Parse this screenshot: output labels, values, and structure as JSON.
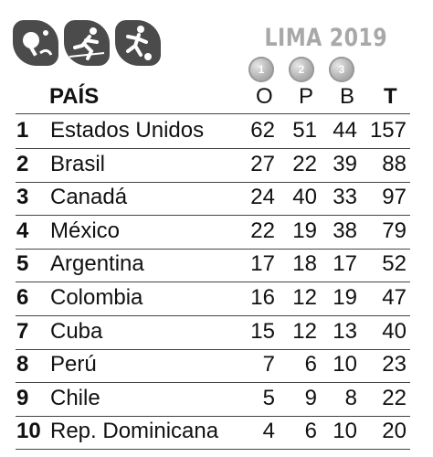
{
  "header": {
    "event_title": "LIMA 2019",
    "medals": [
      "1",
      "2",
      "3"
    ],
    "pictograms": [
      "table-tennis-icon",
      "athletics-icon",
      "football-icon"
    ]
  },
  "table": {
    "columns": {
      "pais": "PAÍS",
      "oro": "O",
      "plata": "P",
      "bronce": "B",
      "total": "T"
    },
    "rows": [
      {
        "rank": "1",
        "country": "Estados Unidos",
        "o": "62",
        "p": "51",
        "b": "44",
        "t": "157"
      },
      {
        "rank": "2",
        "country": "Brasil",
        "o": "27",
        "p": "22",
        "b": "39",
        "t": "88"
      },
      {
        "rank": "3",
        "country": "Canadá",
        "o": "24",
        "p": "40",
        "b": "33",
        "t": "97"
      },
      {
        "rank": "4",
        "country": "México",
        "o": "22",
        "p": "19",
        "b": "38",
        "t": "79"
      },
      {
        "rank": "5",
        "country": "Argentina",
        "o": "17",
        "p": "18",
        "b": "17",
        "t": "52"
      },
      {
        "rank": "6",
        "country": "Colombia",
        "o": "16",
        "p": "12",
        "b": "19",
        "t": "47"
      },
      {
        "rank": "7",
        "country": "Cuba",
        "o": "15",
        "p": "12",
        "b": "13",
        "t": "40"
      },
      {
        "rank": "8",
        "country": "Perú",
        "o": "7",
        "p": "6",
        "b": "10",
        "t": "23"
      },
      {
        "rank": "9",
        "country": "Chile",
        "o": "5",
        "p": "9",
        "b": "8",
        "t": "22"
      },
      {
        "rank": "10",
        "country": "Rep. Dominicana",
        "o": "4",
        "p": "6",
        "b": "10",
        "t": "20"
      }
    ]
  }
}
